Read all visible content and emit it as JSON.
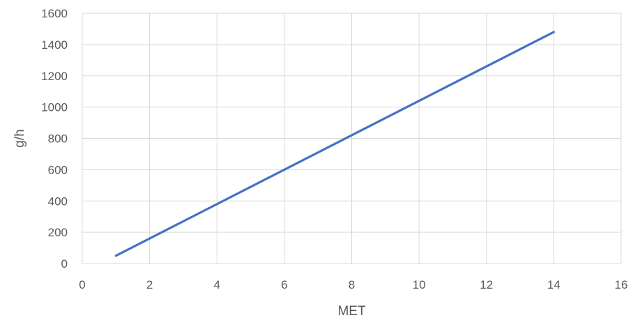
{
  "chart_data": {
    "type": "line",
    "title": "",
    "xlabel": "MET",
    "ylabel": "g/h",
    "xlim": [
      0,
      16
    ],
    "ylim": [
      0,
      1600
    ],
    "x_ticks": [
      0,
      2,
      4,
      6,
      8,
      10,
      12,
      14,
      16
    ],
    "y_ticks": [
      0,
      200,
      400,
      600,
      800,
      1000,
      1200,
      1400,
      1600
    ],
    "grid": true,
    "legend": "none",
    "series": [
      {
        "color": "#4472c4",
        "x": [
          1,
          14
        ],
        "y": [
          50,
          1480
        ]
      }
    ]
  }
}
